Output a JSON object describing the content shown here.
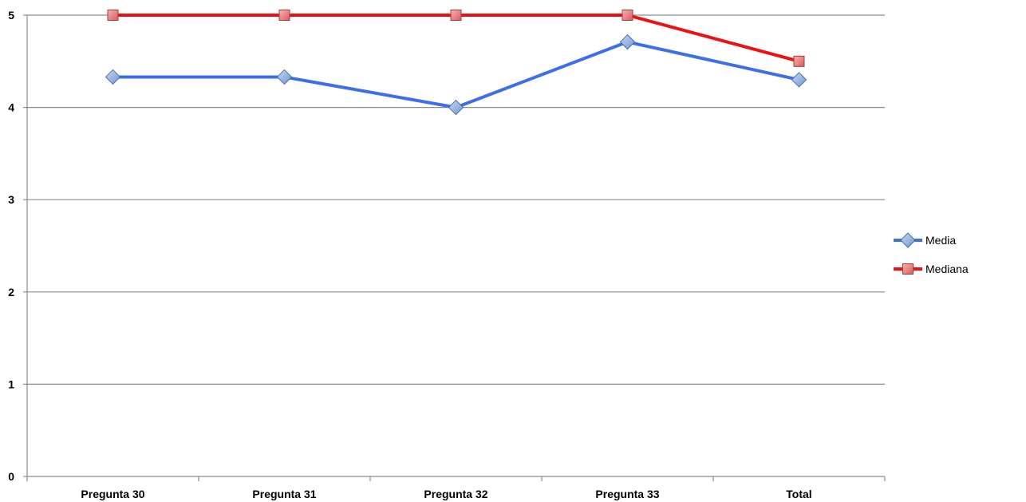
{
  "chart_data": {
    "type": "line",
    "title": "",
    "xlabel": "",
    "ylabel": "",
    "categories": [
      "Pregunta 30",
      "Pregunta 31",
      "Pregunta 32",
      "Pregunta 33",
      "Total"
    ],
    "ylim": [
      0,
      5
    ],
    "yticks": [
      "0",
      "1",
      "2",
      "3",
      "4",
      "5"
    ],
    "grid": true,
    "legend_position": "right",
    "series": [
      {
        "name": "Media",
        "values": [
          4.33,
          4.33,
          4.0,
          4.71,
          4.3
        ],
        "color": "#3d6fe8",
        "marker": "diamond",
        "marker_color": "#8fb0de"
      },
      {
        "name": "Mediana",
        "values": [
          5,
          5,
          5,
          5,
          4.5
        ],
        "color": "#ee1111",
        "marker": "square",
        "marker_color": "#e87f7f"
      }
    ]
  }
}
